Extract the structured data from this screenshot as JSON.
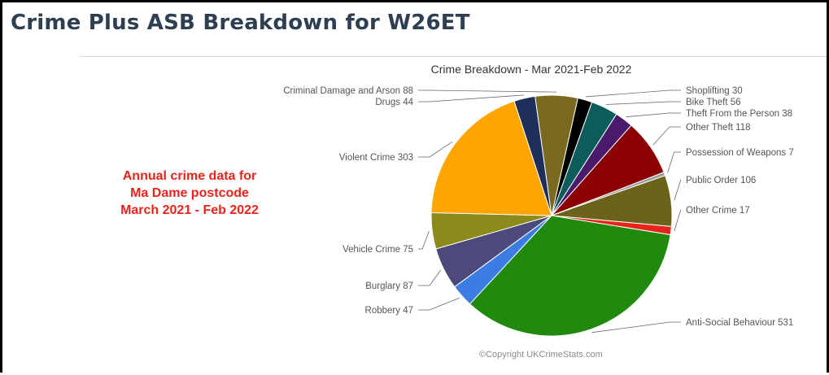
{
  "page": {
    "title": "Crime Plus ASB Breakdown for W26ET",
    "annual_note": [
      "Annual crime data for",
      "Ma Dame postcode",
      "March 2021 - Feb 2022"
    ],
    "copyright": "©Copyright UKCrimeStats.com"
  },
  "chart_data": {
    "type": "pie",
    "title": "Crime Breakdown - Mar 2021-Feb 2022",
    "slices": [
      {
        "name": "Shoplifting",
        "value": 30,
        "color": "#000000",
        "label": "Shoplifting 30"
      },
      {
        "name": "Bike Theft",
        "value": 56,
        "color": "#0d5c5c",
        "label": "Bike Theft 56"
      },
      {
        "name": "Theft From the Person",
        "value": 38,
        "color": "#4a1a6b",
        "label": "Theft From the Person 38"
      },
      {
        "name": "Other Theft",
        "value": 118,
        "color": "#8b0000",
        "label": "Other Theft 118"
      },
      {
        "name": "Possession of Weapons",
        "value": 7,
        "color": "#9a9a9a",
        "label": "Possession of Weapons 7"
      },
      {
        "name": "Public Order",
        "value": 106,
        "color": "#6b6319",
        "label": "Public Order 106"
      },
      {
        "name": "Other Crime",
        "value": 17,
        "color": "#e8231a",
        "label": "Other Crime 17"
      },
      {
        "name": "Anti-Social Behaviour",
        "value": 531,
        "color": "#1f8a0d",
        "label": "Anti-Social Behaviour 531"
      },
      {
        "name": "Robbery",
        "value": 47,
        "color": "#3b7de3",
        "label": "Robbery 47"
      },
      {
        "name": "Burglary",
        "value": 87,
        "color": "#4c4a7a",
        "label": "Burglary 87"
      },
      {
        "name": "Vehicle Crime",
        "value": 75,
        "color": "#8c8a1a",
        "label": "Vehicle Crime 75"
      },
      {
        "name": "Violent Crime",
        "value": 303,
        "color": "#ffa500",
        "label": "Violent Crime 303"
      },
      {
        "name": "Drugs",
        "value": 44,
        "color": "#1f2f5c",
        "label": "Drugs 44"
      },
      {
        "name": "Criminal Damage and Arson",
        "value": 88,
        "color": "#7a6a1f",
        "label": "Criminal Damage and Arson 88"
      }
    ]
  }
}
